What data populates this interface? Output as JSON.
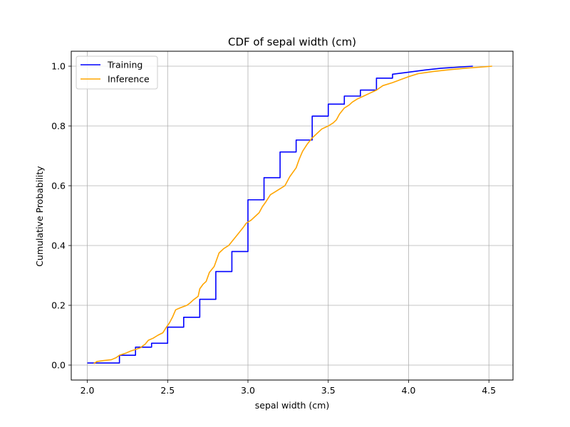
{
  "chart_data": {
    "type": "line",
    "title": "CDF of sepal width (cm)",
    "xlabel": "sepal width (cm)",
    "ylabel": "Cumulative Probability",
    "xlim": [
      1.9,
      4.65
    ],
    "ylim": [
      -0.05,
      1.05
    ],
    "xticks": [
      "2.0",
      "2.5",
      "3.0",
      "3.5",
      "4.0",
      "4.5"
    ],
    "yticks": [
      "0.0",
      "0.2",
      "0.4",
      "0.6",
      "0.8",
      "1.0"
    ],
    "grid": true,
    "legend_position": "top-left",
    "series": [
      {
        "name": "Training",
        "color": "#0000ff",
        "step": true,
        "points": [
          [
            2.0,
            0.007
          ],
          [
            2.2,
            0.007
          ],
          [
            2.2,
            0.033
          ],
          [
            2.3,
            0.033
          ],
          [
            2.3,
            0.06
          ],
          [
            2.4,
            0.06
          ],
          [
            2.4,
            0.073
          ],
          [
            2.5,
            0.073
          ],
          [
            2.5,
            0.127
          ],
          [
            2.6,
            0.127
          ],
          [
            2.6,
            0.16
          ],
          [
            2.7,
            0.16
          ],
          [
            2.7,
            0.22
          ],
          [
            2.8,
            0.22
          ],
          [
            2.8,
            0.313
          ],
          [
            2.9,
            0.313
          ],
          [
            2.9,
            0.38
          ],
          [
            3.0,
            0.38
          ],
          [
            3.0,
            0.553
          ],
          [
            3.1,
            0.553
          ],
          [
            3.1,
            0.627
          ],
          [
            3.2,
            0.627
          ],
          [
            3.2,
            0.713
          ],
          [
            3.3,
            0.713
          ],
          [
            3.3,
            0.753
          ],
          [
            3.4,
            0.753
          ],
          [
            3.4,
            0.833
          ],
          [
            3.5,
            0.833
          ],
          [
            3.5,
            0.873
          ],
          [
            3.6,
            0.873
          ],
          [
            3.6,
            0.9
          ],
          [
            3.7,
            0.9
          ],
          [
            3.7,
            0.92
          ],
          [
            3.8,
            0.92
          ],
          [
            3.8,
            0.96
          ],
          [
            3.9,
            0.96
          ],
          [
            3.9,
            0.973
          ],
          [
            4.0,
            0.98
          ],
          [
            4.1,
            0.987
          ],
          [
            4.2,
            0.993
          ],
          [
            4.4,
            1.0
          ]
        ]
      },
      {
        "name": "Inference",
        "color": "#ffa500",
        "step": false,
        "points": [
          [
            2.04,
            0.005
          ],
          [
            2.06,
            0.012
          ],
          [
            2.1,
            0.015
          ],
          [
            2.15,
            0.018
          ],
          [
            2.18,
            0.025
          ],
          [
            2.2,
            0.033
          ],
          [
            2.24,
            0.04
          ],
          [
            2.27,
            0.047
          ],
          [
            2.3,
            0.052
          ],
          [
            2.33,
            0.058
          ],
          [
            2.36,
            0.07
          ],
          [
            2.38,
            0.083
          ],
          [
            2.41,
            0.09
          ],
          [
            2.44,
            0.1
          ],
          [
            2.47,
            0.108
          ],
          [
            2.49,
            0.125
          ],
          [
            2.51,
            0.14
          ],
          [
            2.53,
            0.16
          ],
          [
            2.55,
            0.185
          ],
          [
            2.58,
            0.192
          ],
          [
            2.62,
            0.2
          ],
          [
            2.64,
            0.208
          ],
          [
            2.66,
            0.218
          ],
          [
            2.69,
            0.23
          ],
          [
            2.7,
            0.255
          ],
          [
            2.72,
            0.27
          ],
          [
            2.74,
            0.28
          ],
          [
            2.76,
            0.31
          ],
          [
            2.79,
            0.33
          ],
          [
            2.8,
            0.345
          ],
          [
            2.82,
            0.375
          ],
          [
            2.85,
            0.39
          ],
          [
            2.88,
            0.4
          ],
          [
            2.91,
            0.42
          ],
          [
            2.94,
            0.44
          ],
          [
            2.97,
            0.46
          ],
          [
            2.99,
            0.475
          ],
          [
            3.02,
            0.485
          ],
          [
            3.05,
            0.5
          ],
          [
            3.07,
            0.51
          ],
          [
            3.09,
            0.53
          ],
          [
            3.11,
            0.545
          ],
          [
            3.14,
            0.57
          ],
          [
            3.17,
            0.58
          ],
          [
            3.2,
            0.59
          ],
          [
            3.23,
            0.6
          ],
          [
            3.26,
            0.63
          ],
          [
            3.3,
            0.66
          ],
          [
            3.32,
            0.69
          ],
          [
            3.34,
            0.715
          ],
          [
            3.37,
            0.74
          ],
          [
            3.4,
            0.76
          ],
          [
            3.43,
            0.775
          ],
          [
            3.46,
            0.79
          ],
          [
            3.5,
            0.8
          ],
          [
            3.53,
            0.81
          ],
          [
            3.55,
            0.82
          ],
          [
            3.57,
            0.84
          ],
          [
            3.6,
            0.86
          ],
          [
            3.63,
            0.87
          ],
          [
            3.65,
            0.88
          ],
          [
            3.68,
            0.89
          ],
          [
            3.72,
            0.9
          ],
          [
            3.76,
            0.91
          ],
          [
            3.8,
            0.92
          ],
          [
            3.84,
            0.935
          ],
          [
            3.9,
            0.945
          ],
          [
            3.95,
            0.955
          ],
          [
            4.0,
            0.965
          ],
          [
            4.06,
            0.975
          ],
          [
            4.15,
            0.982
          ],
          [
            4.25,
            0.988
          ],
          [
            4.35,
            0.993
          ],
          [
            4.45,
            0.997
          ],
          [
            4.52,
            1.0
          ]
        ]
      }
    ]
  }
}
